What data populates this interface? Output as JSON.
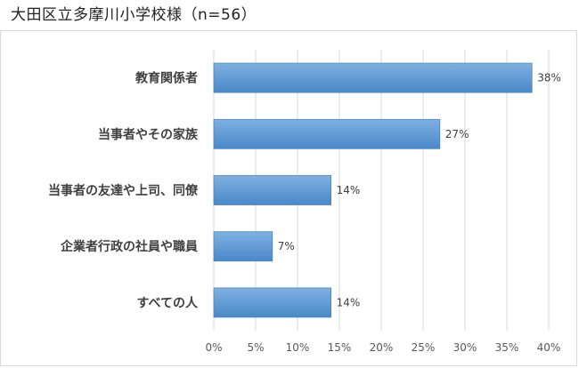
{
  "title": "大田区立多摩川小学校様（n=56）",
  "chart_data": {
    "type": "bar",
    "orientation": "horizontal",
    "title": "大田区立多摩川小学校様（n=56）",
    "categories": [
      "教育関係者",
      "当事者やその家族",
      "当事者の友達や上司、同僚",
      "企業者行政の社員や職員",
      "すべての人"
    ],
    "values": [
      38,
      27,
      14,
      7,
      14
    ],
    "data_labels": [
      "38%",
      "27%",
      "14%",
      "7%",
      "14%"
    ],
    "xlim": [
      0,
      40
    ],
    "x_ticks": [
      "0%",
      "5%",
      "10%",
      "15%",
      "20%",
      "25%",
      "30%",
      "35%",
      "40%"
    ],
    "xlabel": "",
    "ylabel": "",
    "grid": true,
    "bar_color": "#5b9bd5"
  }
}
